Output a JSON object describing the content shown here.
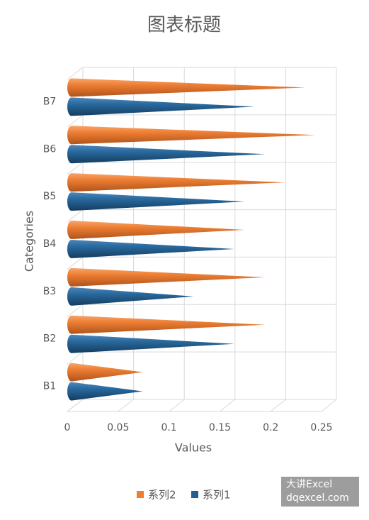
{
  "chart_data": {
    "type": "bar3d-cone",
    "title": "图表标题",
    "x_label": "Values",
    "y_label": "Categories",
    "categories": [
      "B1",
      "B2",
      "B3",
      "B4",
      "B5",
      "B6",
      "B7"
    ],
    "series": [
      {
        "name": "系列1",
        "color": "#255e91",
        "values": [
          0.07,
          0.16,
          0.12,
          0.16,
          0.17,
          0.19,
          0.18
        ]
      },
      {
        "name": "系列2",
        "color": "#ed7d31",
        "values": [
          0.07,
          0.19,
          0.19,
          0.17,
          0.21,
          0.24,
          0.23
        ]
      }
    ],
    "xlim": [
      0,
      0.25
    ],
    "xticks": [
      0,
      0.05,
      0.1,
      0.15,
      0.2,
      0.25
    ],
    "grid": true,
    "legend": "bottom",
    "watermark": [
      "大讲Excel",
      "dqexcel.com"
    ]
  }
}
